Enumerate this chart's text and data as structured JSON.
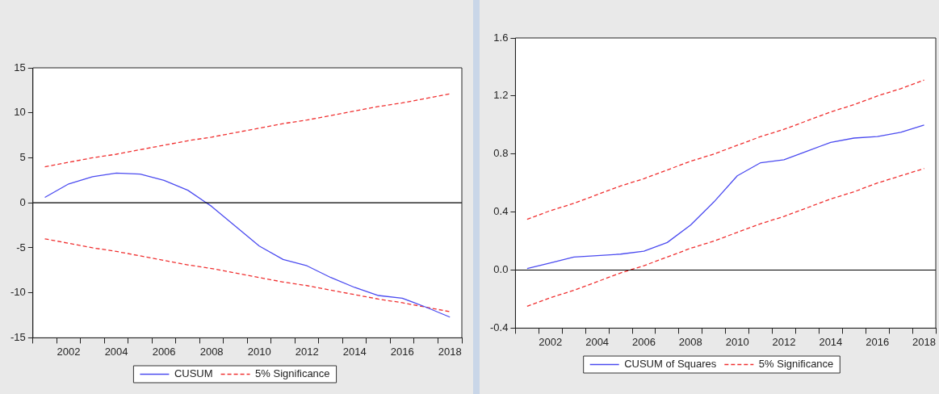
{
  "chart_data": [
    {
      "type": "line",
      "x": [
        2001,
        2002,
        2003,
        2004,
        2005,
        2006,
        2007,
        2008,
        2009,
        2010,
        2011,
        2012,
        2013,
        2014,
        2015,
        2016,
        2017,
        2018
      ],
      "series": [
        {
          "name": "CUSUM",
          "color": "#4b4bf0",
          "line_style": "solid",
          "values": [
            0.6,
            2.1,
            2.9,
            3.3,
            3.2,
            2.5,
            1.4,
            -0.4,
            -2.6,
            -4.8,
            -6.3,
            -7.0,
            -8.3,
            -9.4,
            -10.3,
            -10.6,
            -11.6,
            -12.7
          ]
        },
        {
          "name": "5% Significance",
          "color": "#f03030",
          "line_style": "dashed",
          "values": [
            4.0,
            4.5,
            5.0,
            5.4,
            5.9,
            6.4,
            6.9,
            7.3,
            7.8,
            8.3,
            8.8,
            9.2,
            9.7,
            10.2,
            10.7,
            11.1,
            11.6,
            12.1
          ]
        },
        {
          "color": "#f03030",
          "line_style": "dashed",
          "values": [
            -4.0,
            -4.5,
            -5.0,
            -5.4,
            -5.9,
            -6.4,
            -6.9,
            -7.3,
            -7.8,
            -8.3,
            -8.8,
            -9.2,
            -9.7,
            -10.2,
            -10.7,
            -11.1,
            -11.6,
            -12.1
          ]
        }
      ],
      "xlim": [
        2000.5,
        2018.5
      ],
      "xticks": [
        {
          "value": 2000.5,
          "label": null
        },
        {
          "value": 2001.5,
          "label": null
        },
        2002,
        {
          "value": 2002.5,
          "label": null
        },
        {
          "value": 2003.5,
          "label": null
        },
        2004,
        {
          "value": 2004.5,
          "label": null
        },
        {
          "value": 2005.5,
          "label": null
        },
        2006,
        {
          "value": 2006.5,
          "label": null
        },
        {
          "value": 2007.5,
          "label": null
        },
        2008,
        {
          "value": 2008.5,
          "label": null
        },
        {
          "value": 2009.5,
          "label": null
        },
        2010,
        {
          "value": 2010.5,
          "label": null
        },
        {
          "value": 2011.5,
          "label": null
        },
        2012,
        {
          "value": 2012.5,
          "label": null
        },
        {
          "value": 2013.5,
          "label": null
        },
        2014,
        {
          "value": 2014.5,
          "label": null
        },
        {
          "value": 2015.5,
          "label": null
        },
        2016,
        {
          "value": 2016.5,
          "label": null
        },
        {
          "value": 2017.5,
          "label": null
        },
        2018,
        {
          "value": 2018.5,
          "label": null
        }
      ],
      "ylim": [
        -15,
        15
      ],
      "yticks": [
        -15,
        -10,
        -5,
        0,
        5,
        10,
        15
      ],
      "ref_lines": [
        {
          "axis": "y",
          "value": 0,
          "color": "#000000"
        }
      ],
      "grid": false,
      "legend": "bottom"
    },
    {
      "type": "line",
      "x": [
        2001,
        2002,
        2003,
        2004,
        2005,
        2006,
        2007,
        2008,
        2009,
        2010,
        2011,
        2012,
        2013,
        2014,
        2015,
        2016,
        2017,
        2018
      ],
      "series": [
        {
          "name": "CUSUM of Squares",
          "color": "#4b4bf0",
          "line_style": "solid",
          "values": [
            0.01,
            0.05,
            0.09,
            0.1,
            0.11,
            0.13,
            0.19,
            0.31,
            0.47,
            0.65,
            0.74,
            0.76,
            0.82,
            0.88,
            0.91,
            0.92,
            0.95,
            1.0
          ]
        },
        {
          "name": "5% Significance",
          "color": "#f03030",
          "line_style": "dashed",
          "values": [
            0.35,
            0.41,
            0.46,
            0.52,
            0.58,
            0.63,
            0.69,
            0.75,
            0.8,
            0.86,
            0.92,
            0.97,
            1.03,
            1.09,
            1.14,
            1.2,
            1.25,
            1.31
          ]
        },
        {
          "color": "#f03030",
          "line_style": "dashed",
          "values": [
            -0.25,
            -0.19,
            -0.14,
            -0.08,
            -0.02,
            0.03,
            0.09,
            0.15,
            0.2,
            0.26,
            0.32,
            0.37,
            0.43,
            0.49,
            0.54,
            0.6,
            0.65,
            0.7
          ]
        }
      ],
      "xlim": [
        2000.5,
        2018.5
      ],
      "xticks": [
        {
          "value": 2000.5,
          "label": null
        },
        {
          "value": 2001.5,
          "label": null
        },
        2002,
        {
          "value": 2002.5,
          "label": null
        },
        {
          "value": 2003.5,
          "label": null
        },
        2004,
        {
          "value": 2004.5,
          "label": null
        },
        {
          "value": 2005.5,
          "label": null
        },
        2006,
        {
          "value": 2006.5,
          "label": null
        },
        {
          "value": 2007.5,
          "label": null
        },
        2008,
        {
          "value": 2008.5,
          "label": null
        },
        {
          "value": 2009.5,
          "label": null
        },
        2010,
        {
          "value": 2010.5,
          "label": null
        },
        {
          "value": 2011.5,
          "label": null
        },
        2012,
        {
          "value": 2012.5,
          "label": null
        },
        {
          "value": 2013.5,
          "label": null
        },
        2014,
        {
          "value": 2014.5,
          "label": null
        },
        {
          "value": 2015.5,
          "label": null
        },
        2016,
        {
          "value": 2016.5,
          "label": null
        },
        {
          "value": 2017.5,
          "label": null
        },
        2018,
        {
          "value": 2018.5,
          "label": null
        }
      ],
      "ylim": [
        -0.4,
        1.6
      ],
      "yticks": [
        {
          "value": -0.4,
          "label": "-0.4"
        },
        {
          "value": 0,
          "label": "0.0"
        },
        {
          "value": 0.4,
          "label": "0.4"
        },
        {
          "value": 0.8,
          "label": "0.8"
        },
        {
          "value": 1.2,
          "label": "1.2"
        },
        {
          "value": 1.6,
          "label": "1.6"
        }
      ],
      "ref_lines": [
        {
          "axis": "y",
          "value": 0,
          "color": "#000000"
        }
      ],
      "grid": false,
      "legend": "bottom"
    }
  ]
}
